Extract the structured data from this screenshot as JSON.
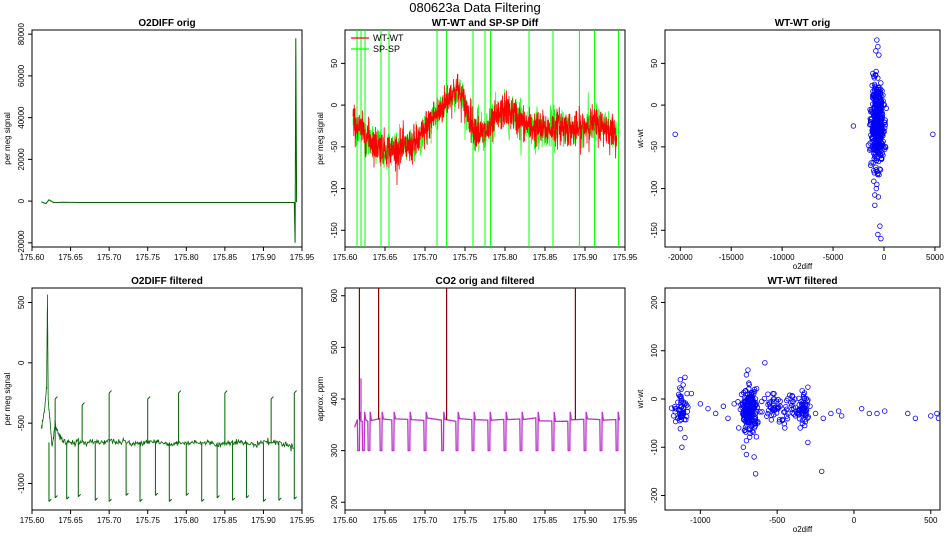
{
  "figure_title": "080623a   Data Filtering",
  "chart_data": [
    {
      "id": "p1",
      "type": "line",
      "title": "O2DIFF orig",
      "xlabel": "",
      "ylabel": "per meg signal",
      "xlim": [
        175.6,
        175.95
      ],
      "ylim": [
        -22000,
        82000
      ],
      "xticks": [
        175.6,
        175.65,
        175.7,
        175.75,
        175.8,
        175.85,
        175.9,
        175.95
      ],
      "xtick_labels": [
        "175.60",
        "175.65",
        "175.70",
        "175.75",
        "175.80",
        "175.85",
        "175.90",
        "175.95"
      ],
      "yticks": [
        -20000,
        0,
        20000,
        40000,
        60000,
        80000
      ],
      "ytick_labels": [
        "-20000",
        "0",
        "20000",
        "40000",
        "60000",
        "80000"
      ],
      "series": [
        {
          "color": "#006400",
          "x": [
            175.612,
            175.618,
            175.622,
            175.628,
            175.64,
            175.66,
            175.7,
            175.75,
            175.8,
            175.85,
            175.9,
            175.94,
            175.941,
            175.942,
            175.943
          ],
          "y": [
            -400,
            -1200,
            600,
            -700,
            -600,
            -650,
            -650,
            -650,
            -650,
            -650,
            -650,
            -650,
            -20000,
            78000,
            -600
          ]
        }
      ]
    },
    {
      "id": "p2",
      "type": "line",
      "title": "WT-WT and SP-SP Diff",
      "xlabel": "",
      "ylabel": "per meg signal",
      "xlim": [
        175.6,
        175.95
      ],
      "ylim": [
        -170,
        90
      ],
      "xticks": [
        175.6,
        175.65,
        175.7,
        175.75,
        175.8,
        175.85,
        175.9,
        175.95
      ],
      "xtick_labels": [
        "175.60",
        "175.65",
        "175.70",
        "175.75",
        "175.80",
        "175.85",
        "175.90",
        "175.95"
      ],
      "yticks": [
        -150,
        -100,
        -50,
        0,
        50
      ],
      "ytick_labels": [
        "-150",
        "-100",
        "-50",
        "0",
        "50"
      ],
      "legend": {
        "position": "top-left",
        "entries": [
          {
            "label": "WT-WT",
            "color": "#ff0000"
          },
          {
            "label": "SP-SP",
            "color": "#00ff00"
          }
        ]
      },
      "series": [
        {
          "name": "SP-SP",
          "color": "#00ff00",
          "spikes_x": [
            175.615,
            175.62,
            175.625,
            175.645,
            175.655,
            175.715,
            175.727,
            175.76,
            175.775,
            175.782,
            175.83,
            175.86,
            175.893,
            175.912,
            175.942
          ]
        },
        {
          "name": "WT-WT",
          "color": "#ff0000",
          "x": [
            175.61,
            175.62,
            175.63,
            175.64,
            175.65,
            175.66,
            175.67,
            175.68,
            175.69,
            175.7,
            175.71,
            175.72,
            175.73,
            175.74,
            175.75,
            175.76,
            175.77,
            175.78,
            175.79,
            175.8,
            175.81,
            175.82,
            175.83,
            175.84,
            175.85,
            175.86,
            175.87,
            175.88,
            175.89,
            175.9,
            175.91,
            175.92,
            175.93,
            175.94
          ],
          "y": [
            -20,
            -30,
            -40,
            -48,
            -52,
            -55,
            -52,
            -50,
            -45,
            -30,
            -15,
            -5,
            10,
            20,
            0,
            -25,
            -35,
            -30,
            -15,
            -5,
            -10,
            -20,
            -25,
            -28,
            -30,
            -27,
            -25,
            -28,
            -30,
            -25,
            -22,
            -25,
            -30,
            -35
          ],
          "noise": 15
        }
      ]
    },
    {
      "id": "p3",
      "type": "scatter",
      "title": "WT-WT orig",
      "xlabel": "o2diff",
      "ylabel": "wt-wt",
      "xlim": [
        -21500,
        5500
      ],
      "ylim": [
        -170,
        90
      ],
      "xticks": [
        -20000,
        -15000,
        -10000,
        -5000,
        0,
        5000
      ],
      "xtick_labels": [
        "-20000",
        "-15000",
        "-10000",
        "-5000",
        "0",
        "5000"
      ],
      "yticks": [
        -150,
        -100,
        -50,
        0,
        50
      ],
      "ytick_labels": [
        "-150",
        "-100",
        "-50",
        "0",
        "50"
      ],
      "marker_color": "#0000ff",
      "cluster": {
        "x_center": -650,
        "x_spread": 300,
        "y_center": -25,
        "y_spread": 22,
        "count": 500
      },
      "points": [
        [
          -20500,
          -35
        ],
        [
          4800,
          -35
        ],
        [
          -700,
          78
        ],
        [
          -600,
          70
        ],
        [
          -800,
          65
        ],
        [
          -500,
          60
        ],
        [
          -900,
          -120
        ],
        [
          -550,
          -110
        ],
        [
          -300,
          -160
        ],
        [
          -600,
          -155
        ],
        [
          -400,
          -145
        ],
        [
          -750,
          -100
        ],
        [
          -3000,
          -25
        ],
        [
          -700,
          -95
        ],
        [
          -100,
          -60
        ],
        [
          -200,
          -50
        ]
      ]
    },
    {
      "id": "p4",
      "type": "line",
      "title": "O2DIFF filtered",
      "xlabel": "",
      "ylabel": "per meg signal",
      "xlim": [
        175.6,
        175.95
      ],
      "ylim": [
        -1220,
        620
      ],
      "xticks": [
        175.6,
        175.65,
        175.7,
        175.75,
        175.8,
        175.85,
        175.9,
        175.95
      ],
      "xtick_labels": [
        "175.60",
        "175.65",
        "175.70",
        "175.75",
        "175.80",
        "175.85",
        "175.90",
        "175.95"
      ],
      "yticks": [
        -1000,
        -500,
        0,
        500
      ],
      "ytick_labels": [
        "-1000",
        "-500",
        "0",
        "500"
      ],
      "series": [
        {
          "color": "#006400",
          "x": [
            175.612,
            175.616,
            175.619,
            175.62,
            175.621,
            175.623,
            175.626,
            175.63,
            175.635,
            175.64,
            175.65,
            175.66,
            175.67,
            175.68,
            175.69,
            175.7,
            175.71,
            175.72,
            175.73,
            175.74,
            175.75,
            175.76,
            175.77,
            175.78,
            175.79,
            175.8,
            175.81,
            175.82,
            175.83,
            175.84,
            175.85,
            175.86,
            175.87,
            175.88,
            175.89,
            175.9,
            175.91,
            175.92,
            175.93,
            175.94
          ],
          "y": [
            -550,
            -400,
            -200,
            560,
            -300,
            -450,
            -700,
            -500,
            -600,
            -650,
            -660,
            -650,
            -670,
            -650,
            -660,
            -640,
            -660,
            -650,
            -680,
            -660,
            -650,
            -650,
            -670,
            -680,
            -660,
            -670,
            -650,
            -670,
            -660,
            -680,
            -670,
            -650,
            -660,
            -670,
            -680,
            -650,
            -660,
            -660,
            -680,
            -700
          ],
          "spikes": [
            [
              175.622,
              -1150
            ],
            [
              175.63,
              -1120
            ],
            [
              175.645,
              -1130
            ],
            [
              175.66,
              -1110
            ],
            [
              175.682,
              -1140
            ],
            [
              175.7,
              -1150
            ],
            [
              175.722,
              -1100
            ],
            [
              175.74,
              -1150
            ],
            [
              175.76,
              -1100
            ],
            [
              175.778,
              -1150
            ],
            [
              175.8,
              -1100
            ],
            [
              175.82,
              -1150
            ],
            [
              175.84,
              -1120
            ],
            [
              175.86,
              -1140
            ],
            [
              175.878,
              -1120
            ],
            [
              175.9,
              -1150
            ],
            [
              175.92,
              -1140
            ],
            [
              175.94,
              -1130
            ],
            [
              175.63,
              -300
            ],
            [
              175.665,
              -350
            ],
            [
              175.7,
              -250
            ],
            [
              175.75,
              -300
            ],
            [
              175.79,
              -250
            ],
            [
              175.85,
              -250
            ],
            [
              175.91,
              -300
            ],
            [
              175.94,
              -250
            ]
          ]
        }
      ]
    },
    {
      "id": "p5",
      "type": "line",
      "title": "CO2 orig and filtered",
      "xlabel": "",
      "ylabel": "approx. ppm",
      "xlim": [
        175.6,
        175.95
      ],
      "ylim": [
        185,
        615
      ],
      "xticks": [
        175.6,
        175.65,
        175.7,
        175.75,
        175.8,
        175.85,
        175.9,
        175.95
      ],
      "xtick_labels": [
        "175.60",
        "175.65",
        "175.70",
        "175.75",
        "175.80",
        "175.85",
        "175.90",
        "175.95"
      ],
      "yticks": [
        200,
        300,
        400,
        500,
        600
      ],
      "ytick_labels": [
        "200",
        "300",
        "400",
        "500",
        "600"
      ],
      "series": [
        {
          "color": "#8b0000",
          "spikes_x": [
            175.618,
            175.642,
            175.727,
            175.888
          ],
          "base": 360,
          "top": 620
        },
        {
          "color": "#bb33cc",
          "baseline": 360,
          "dips_x": [
            175.617,
            175.623,
            175.63,
            175.645,
            175.66,
            175.68,
            175.7,
            175.722,
            175.74,
            175.76,
            175.78,
            175.8,
            175.82,
            175.84,
            175.86,
            175.88,
            175.9,
            175.92,
            175.94
          ],
          "dip_low": 300,
          "bump_x": 175.62,
          "bump_high": 440
        }
      ]
    },
    {
      "id": "p6",
      "type": "scatter",
      "title": "WT-WT filtered",
      "xlabel": "o2diff",
      "ylabel": "wt-wt",
      "xlim": [
        -1230,
        560
      ],
      "ylim": [
        -230,
        230
      ],
      "xticks": [
        -1000,
        -500,
        0,
        500
      ],
      "xtick_labels": [
        "-1000",
        "-500",
        "0",
        "500"
      ],
      "yticks": [
        -200,
        -100,
        0,
        100,
        200
      ],
      "ytick_labels": [
        "-200",
        "-100",
        "0",
        "100",
        "200"
      ],
      "marker_color": "#0000ff",
      "clusters": [
        {
          "x_center": -1120,
          "x_spread": 25,
          "y_center": -20,
          "y_spread": 18,
          "count": 60
        },
        {
          "x_center": -680,
          "x_spread": 25,
          "y_center": -25,
          "y_spread": 22,
          "count": 200
        },
        {
          "x_center": -500,
          "x_spread": 60,
          "y_center": -20,
          "y_spread": 15,
          "count": 60
        },
        {
          "x_center": -330,
          "x_spread": 25,
          "y_center": -25,
          "y_spread": 15,
          "count": 60
        }
      ],
      "points": [
        [
          -1100,
          45
        ],
        [
          -1130,
          40
        ],
        [
          -1120,
          -100
        ],
        [
          -1100,
          -80
        ],
        [
          -1000,
          -10
        ],
        [
          -950,
          -20
        ],
        [
          -900,
          -30
        ],
        [
          -850,
          -15
        ],
        [
          -820,
          -40
        ],
        [
          -780,
          -10
        ],
        [
          -750,
          -60
        ],
        [
          -700,
          50
        ],
        [
          -690,
          60
        ],
        [
          -720,
          -100
        ],
        [
          -700,
          -115
        ],
        [
          -650,
          -120
        ],
        [
          -600,
          -5
        ],
        [
          -560,
          10
        ],
        [
          -520,
          -5
        ],
        [
          -480,
          -15
        ],
        [
          -450,
          -60
        ],
        [
          -430,
          -30
        ],
        [
          -400,
          5
        ],
        [
          -380,
          -35
        ],
        [
          -350,
          -60
        ],
        [
          -300,
          -90
        ],
        [
          -250,
          -30
        ],
        [
          -200,
          -40
        ],
        [
          -150,
          -30
        ],
        [
          -100,
          -25
        ],
        [
          -80,
          -35
        ],
        [
          50,
          -20
        ],
        [
          100,
          -30
        ],
        [
          150,
          -30
        ],
        [
          200,
          -25
        ],
        [
          350,
          -30
        ],
        [
          400,
          -40
        ],
        [
          500,
          -35
        ],
        [
          550,
          -40
        ],
        [
          540,
          -30
        ],
        [
          -580,
          75
        ],
        [
          -640,
          -155
        ],
        [
          -210,
          -150
        ]
      ]
    }
  ]
}
